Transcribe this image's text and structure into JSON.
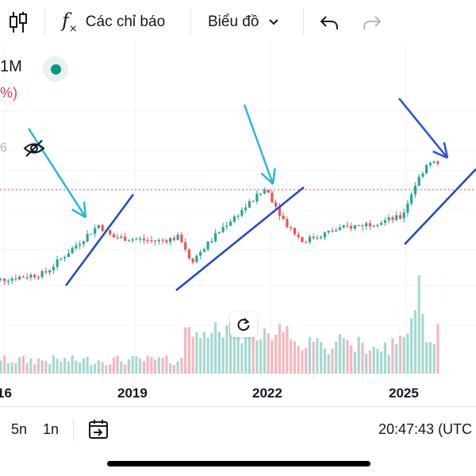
{
  "toolbar": {
    "candles_icon": "candlestick-chart-icon",
    "indicators_label": "Các chỉ báo",
    "indicators_icon": "function-fx-icon",
    "chart_type_label": "Biểu đồ",
    "chart_type_icon": "chevron-down-icon",
    "undo_icon": "undo-icon",
    "redo_icon": "redo-icon"
  },
  "legend": {
    "interval": "1M",
    "change_text": "%)",
    "status_icon": "market-open-dot-icon",
    "visibility_icon": "eye-off-icon",
    "cut_number": "6"
  },
  "reset_chart_icon": "reset-chart-icon",
  "colors": {
    "up": "#26a69a",
    "down": "#ef5350",
    "volume_up": "#a6d8d2",
    "volume_down": "#f5b7bd",
    "last_price_line": "#f23645",
    "trendline": "#2144d6",
    "arrow_cyan": "#26b8d3",
    "arrow_blue": "#2a4fdb"
  },
  "bottom_bar": {
    "range_5y": "5n",
    "range_1y": "1n",
    "goto_date_icon": "goto-date-icon",
    "clock_text": "20:47:43 (UTC"
  },
  "chart_data": {
    "type": "candlestick",
    "interval": "1M",
    "x_axis_labels": [
      "16",
      "2019",
      "2022",
      "2025"
    ],
    "price_path_description_points": [
      {
        "year": 2015.7,
        "close": 100
      },
      {
        "year": 2017.0,
        "close": 104
      },
      {
        "year": 2017.7,
        "close": 118
      },
      {
        "year": 2018.2,
        "close": 128
      },
      {
        "year": 2018.5,
        "close": 122
      },
      {
        "year": 2019.5,
        "close": 120
      },
      {
        "year": 2020.0,
        "close": 122
      },
      {
        "year": 2020.25,
        "close": 110
      },
      {
        "year": 2020.5,
        "close": 116
      },
      {
        "year": 2021.0,
        "close": 128
      },
      {
        "year": 2021.5,
        "close": 138
      },
      {
        "year": 2021.9,
        "close": 146
      },
      {
        "year": 2022.3,
        "close": 130
      },
      {
        "year": 2022.7,
        "close": 120
      },
      {
        "year": 2023.5,
        "close": 126
      },
      {
        "year": 2024.5,
        "close": 130
      },
      {
        "year": 2024.9,
        "close": 132
      },
      {
        "year": 2025.2,
        "close": 148
      },
      {
        "year": 2025.5,
        "close": 160
      },
      {
        "year": 2025.7,
        "close": 158
      }
    ],
    "last_price_line": true,
    "volume": "visible, relative bars"
  }
}
